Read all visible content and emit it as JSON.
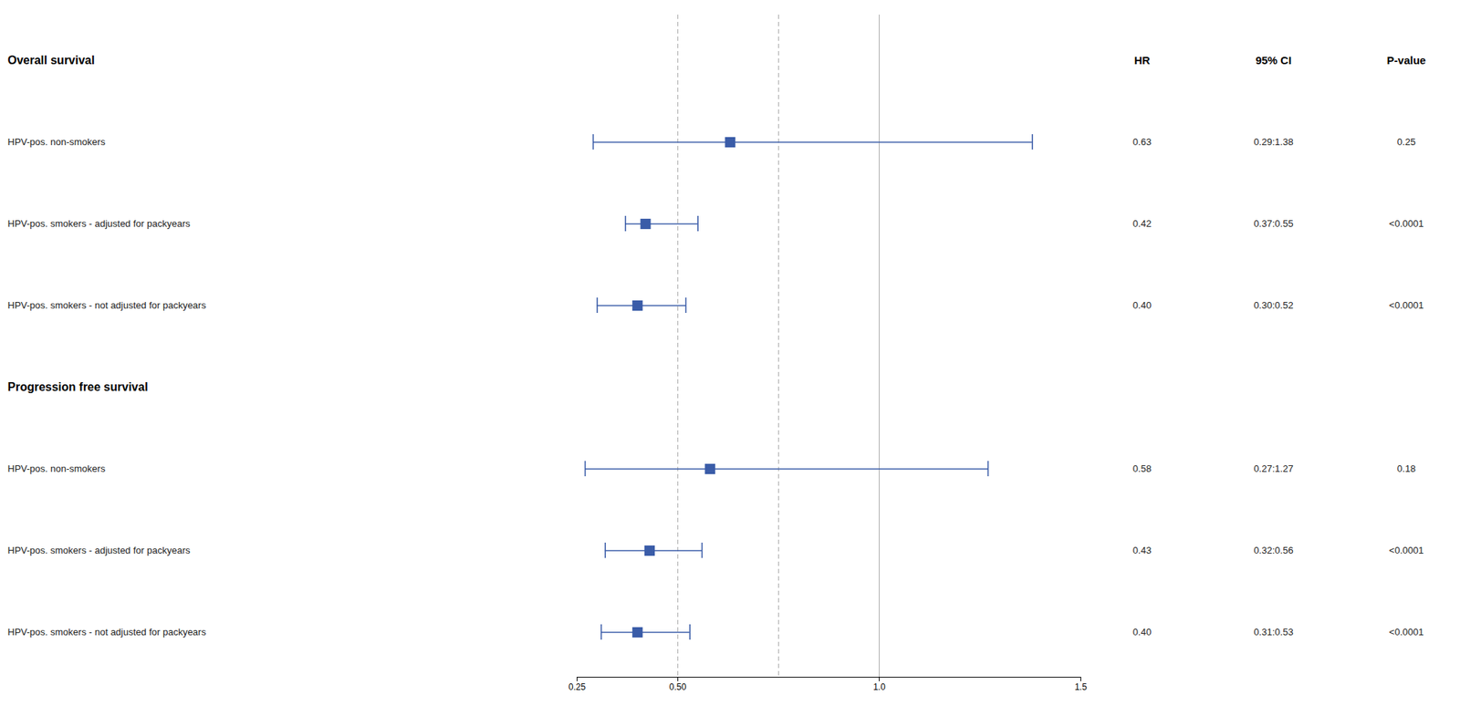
{
  "chart_data": {
    "type": "forest",
    "color": "#3a5ca8",
    "columns": [
      "HR",
      "95% CI",
      "P-value"
    ],
    "groups": [
      {
        "title": "Overall survival",
        "rows": [
          {
            "label": "HPV-pos. non-smokers",
            "hr": 0.63,
            "hr_label": "0.63",
            "ci_low": 0.29,
            "ci_high": 1.38,
            "ci_label": "0.29:1.38",
            "p_label": "0.25"
          },
          {
            "label": "HPV-pos. smokers - adjusted for packyears",
            "hr": 0.42,
            "hr_label": "0.42",
            "ci_low": 0.37,
            "ci_high": 0.55,
            "ci_label": "0.37:0.55",
            "p_label": "<0.0001"
          },
          {
            "label": "HPV-pos. smokers - not adjusted for packyears",
            "hr": 0.4,
            "hr_label": "0.40",
            "ci_low": 0.3,
            "ci_high": 0.52,
            "ci_label": "0.30:0.52",
            "p_label": "<0.0001"
          }
        ]
      },
      {
        "title": "Progression free survival",
        "rows": [
          {
            "label": "HPV-pos. non-smokers",
            "hr": 0.58,
            "hr_label": "0.58",
            "ci_low": 0.27,
            "ci_high": 1.27,
            "ci_label": "0.27:1.27",
            "p_label": "0.18"
          },
          {
            "label": "HPV-pos. smokers - adjusted for packyears",
            "hr": 0.43,
            "hr_label": "0.43",
            "ci_low": 0.32,
            "ci_high": 0.56,
            "ci_label": "0.32:0.56",
            "p_label": "<0.0001"
          },
          {
            "label": "HPV-pos. smokers - not adjusted for packyears",
            "hr": 0.4,
            "hr_label": "0.40",
            "ci_low": 0.31,
            "ci_high": 0.53,
            "ci_label": "0.31:0.53",
            "p_label": "<0.0001"
          }
        ]
      }
    ],
    "reference_lines": [
      {
        "value": 0.5,
        "line_style": "dashed"
      },
      {
        "value": 0.75,
        "line_style": "dashed"
      },
      {
        "value": 1.0,
        "line_style": "solid"
      }
    ],
    "xlim": [
      0.25,
      1.5
    ],
    "xticks": [
      0.25,
      {
        "value": 0.5,
        "label": "0.50"
      },
      {
        "value": 1.0,
        "label": "1.0"
      },
      1.5
    ]
  }
}
